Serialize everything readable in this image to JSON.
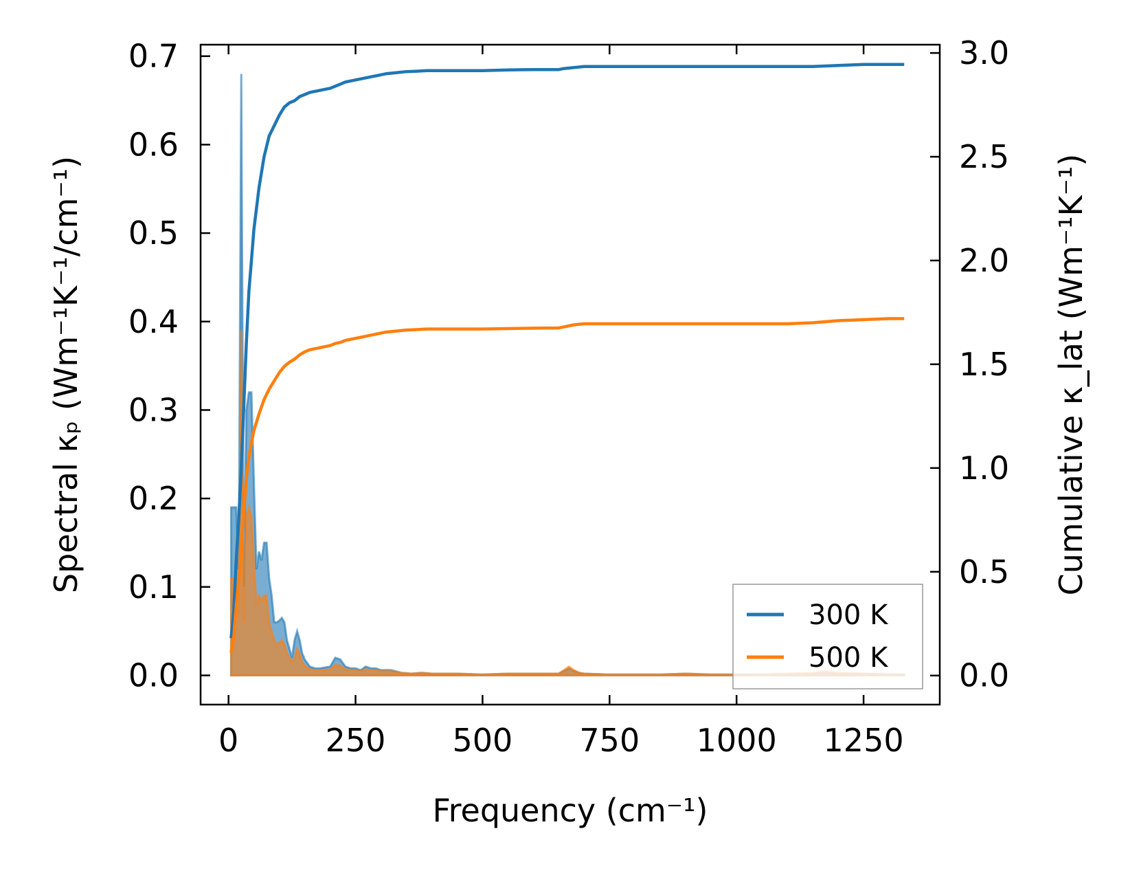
{
  "chart_data": {
    "type": "line",
    "title": "",
    "xlabel": "Frequency (cm⁻¹)",
    "ylabel_left": "Spectral κₚ (Wm⁻¹K⁻¹/cm⁻¹)",
    "ylabel_right": "Cumulative κ_lat (Wm⁻¹K⁻¹)",
    "xlim": [
      -55,
      1400
    ],
    "ylim_left": [
      -0.033,
      0.713
    ],
    "ylim_right": [
      -0.14,
      3.04
    ],
    "xticks": [
      0,
      250,
      500,
      750,
      1000,
      1250
    ],
    "yticks_left": [
      0.0,
      0.1,
      0.2,
      0.3,
      0.4,
      0.5,
      0.6,
      0.7
    ],
    "yticks_right": [
      0.0,
      0.5,
      1.0,
      1.5,
      2.0,
      2.5,
      3.0
    ],
    "xtick_labels": [
      "0",
      "250",
      "500",
      "750",
      "1000",
      "1250"
    ],
    "ytick_labels_left": [
      "0.0",
      "0.1",
      "0.2",
      "0.3",
      "0.4",
      "0.5",
      "0.6",
      "0.7"
    ],
    "ytick_labels_right": [
      "0.0",
      "0.5",
      "1.0",
      "1.5",
      "2.0",
      "2.5",
      "3.0"
    ],
    "grid": false,
    "legend_position": "bottom-right",
    "series": [
      {
        "name": "300 K",
        "color": "#1f77b4",
        "spectral": {
          "x": [
            5,
            10,
            15,
            20,
            25,
            30,
            35,
            40,
            45,
            50,
            55,
            60,
            65,
            70,
            75,
            80,
            85,
            90,
            95,
            100,
            105,
            110,
            115,
            120,
            125,
            130,
            135,
            140,
            145,
            150,
            160,
            170,
            180,
            190,
            200,
            210,
            220,
            230,
            240,
            250,
            260,
            270,
            280,
            290,
            300,
            320,
            340,
            360,
            380,
            400,
            450,
            500,
            550,
            600,
            650,
            660,
            670,
            680,
            690,
            700,
            750,
            800,
            850,
            900,
            950,
            1000,
            1050,
            1100,
            1150,
            1175,
            1200,
            1250,
            1300,
            1330
          ],
          "y": [
            0.19,
            0.19,
            0.19,
            0.12,
            0.68,
            0.1,
            0.3,
            0.32,
            0.32,
            0.22,
            0.12,
            0.14,
            0.13,
            0.15,
            0.15,
            0.11,
            0.09,
            0.06,
            0.06,
            0.062,
            0.065,
            0.06,
            0.04,
            0.03,
            0.02,
            0.04,
            0.05,
            0.04,
            0.025,
            0.018,
            0.01,
            0.008,
            0.008,
            0.009,
            0.01,
            0.02,
            0.018,
            0.01,
            0.008,
            0.008,
            0.006,
            0.01,
            0.008,
            0.008,
            0.006,
            0.006,
            0.003,
            0.002,
            0.003,
            0.002,
            0.002,
            0.001,
            0.002,
            0.002,
            0.002,
            0.005,
            0.008,
            0.005,
            0.003,
            0.002,
            0.001,
            0.001,
            0.001,
            0.002,
            0.001,
            0.001,
            0.001,
            0.001,
            0.002,
            0.003,
            0.002,
            0.002,
            0.001,
            0.001
          ]
        },
        "cumulative": {
          "x": [
            5,
            10,
            15,
            20,
            25,
            30,
            35,
            40,
            45,
            50,
            55,
            60,
            70,
            80,
            90,
            100,
            110,
            120,
            130,
            140,
            150,
            160,
            170,
            180,
            190,
            200,
            210,
            220,
            230,
            240,
            250,
            270,
            290,
            310,
            330,
            350,
            370,
            390,
            400,
            450,
            500,
            550,
            600,
            650,
            660,
            680,
            700,
            800,
            900,
            1000,
            1100,
            1150,
            1200,
            1250,
            1300,
            1330
          ],
          "y": [
            0.18,
            0.3,
            0.55,
            0.75,
            1.0,
            1.3,
            1.6,
            1.85,
            2.0,
            2.15,
            2.25,
            2.35,
            2.5,
            2.6,
            2.65,
            2.7,
            2.74,
            2.76,
            2.77,
            2.79,
            2.8,
            2.81,
            2.815,
            2.82,
            2.825,
            2.83,
            2.84,
            2.85,
            2.86,
            2.865,
            2.87,
            2.88,
            2.89,
            2.9,
            2.905,
            2.91,
            2.912,
            2.915,
            2.915,
            2.915,
            2.915,
            2.918,
            2.92,
            2.92,
            2.925,
            2.93,
            2.935,
            2.935,
            2.935,
            2.935,
            2.935,
            2.935,
            2.94,
            2.945,
            2.945,
            2.945
          ]
        }
      },
      {
        "name": "500 K",
        "color": "#ff7f0e",
        "spectral": {
          "x": [
            5,
            10,
            15,
            20,
            25,
            30,
            35,
            40,
            45,
            50,
            55,
            60,
            65,
            70,
            75,
            80,
            85,
            90,
            95,
            100,
            105,
            110,
            115,
            120,
            125,
            130,
            135,
            140,
            145,
            150,
            160,
            170,
            180,
            190,
            200,
            210,
            220,
            230,
            240,
            250,
            260,
            270,
            280,
            290,
            300,
            320,
            340,
            360,
            380,
            400,
            450,
            500,
            550,
            600,
            650,
            660,
            670,
            680,
            690,
            700,
            750,
            800,
            850,
            900,
            950,
            1000,
            1050,
            1100,
            1150,
            1175,
            1200,
            1250,
            1300,
            1330
          ],
          "y": [
            0.11,
            0.11,
            0.11,
            0.07,
            0.39,
            0.06,
            0.18,
            0.19,
            0.18,
            0.13,
            0.08,
            0.09,
            0.085,
            0.09,
            0.09,
            0.06,
            0.05,
            0.04,
            0.035,
            0.037,
            0.04,
            0.035,
            0.025,
            0.02,
            0.015,
            0.02,
            0.03,
            0.025,
            0.015,
            0.011,
            0.007,
            0.006,
            0.006,
            0.006,
            0.007,
            0.012,
            0.011,
            0.007,
            0.006,
            0.006,
            0.005,
            0.007,
            0.006,
            0.006,
            0.005,
            0.005,
            0.003,
            0.002,
            0.003,
            0.002,
            0.002,
            0.001,
            0.002,
            0.002,
            0.002,
            0.006,
            0.01,
            0.006,
            0.003,
            0.002,
            0.001,
            0.001,
            0.001,
            0.002,
            0.001,
            0.001,
            0.001,
            0.002,
            0.003,
            0.005,
            0.003,
            0.002,
            0.001,
            0.001
          ]
        },
        "cumulative": {
          "x": [
            5,
            10,
            15,
            20,
            25,
            30,
            35,
            40,
            45,
            50,
            55,
            60,
            70,
            80,
            90,
            100,
            110,
            120,
            130,
            140,
            150,
            160,
            170,
            180,
            190,
            200,
            210,
            220,
            230,
            240,
            250,
            270,
            290,
            310,
            330,
            350,
            370,
            390,
            400,
            450,
            500,
            550,
            600,
            650,
            660,
            680,
            700,
            800,
            900,
            1000,
            1100,
            1150,
            1200,
            1250,
            1300,
            1330
          ],
          "y": [
            0.11,
            0.18,
            0.33,
            0.45,
            0.6,
            0.78,
            0.95,
            1.05,
            1.12,
            1.18,
            1.22,
            1.26,
            1.33,
            1.38,
            1.42,
            1.46,
            1.49,
            1.51,
            1.525,
            1.545,
            1.56,
            1.57,
            1.575,
            1.58,
            1.585,
            1.59,
            1.6,
            1.605,
            1.615,
            1.62,
            1.625,
            1.635,
            1.645,
            1.655,
            1.66,
            1.665,
            1.667,
            1.67,
            1.67,
            1.67,
            1.67,
            1.672,
            1.674,
            1.675,
            1.68,
            1.69,
            1.695,
            1.695,
            1.695,
            1.695,
            1.695,
            1.7,
            1.71,
            1.715,
            1.72,
            1.72
          ]
        }
      }
    ]
  }
}
